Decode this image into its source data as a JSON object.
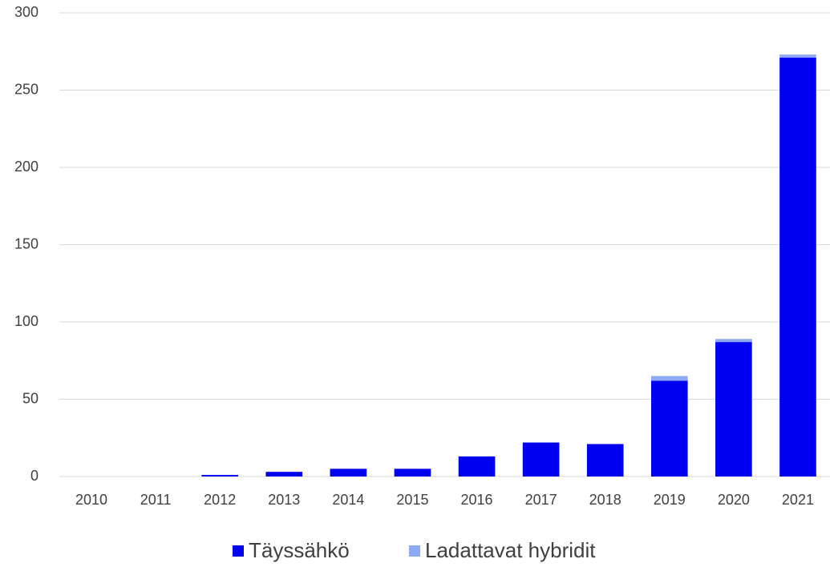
{
  "chart_data": {
    "type": "stacked_bar",
    "categories": [
      "2010",
      "2011",
      "2012",
      "2013",
      "2014",
      "2015",
      "2016",
      "2017",
      "2018",
      "2019",
      "2020",
      "2021"
    ],
    "series": [
      {
        "name": "Täyssähkö",
        "color": "#0000f0",
        "values": [
          0,
          0,
          1,
          3,
          5,
          5,
          13,
          22,
          21,
          62,
          87,
          271
        ]
      },
      {
        "name": "Ladattavat hybridit",
        "color": "#8faaf5",
        "values": [
          0,
          0,
          0,
          0,
          0,
          0,
          0,
          0,
          0,
          3,
          2,
          2
        ]
      }
    ],
    "ylim": [
      0,
      300
    ],
    "yticks": [
      0,
      50,
      100,
      150,
      200,
      250,
      300
    ],
    "grid": true,
    "legend": "bottom"
  }
}
